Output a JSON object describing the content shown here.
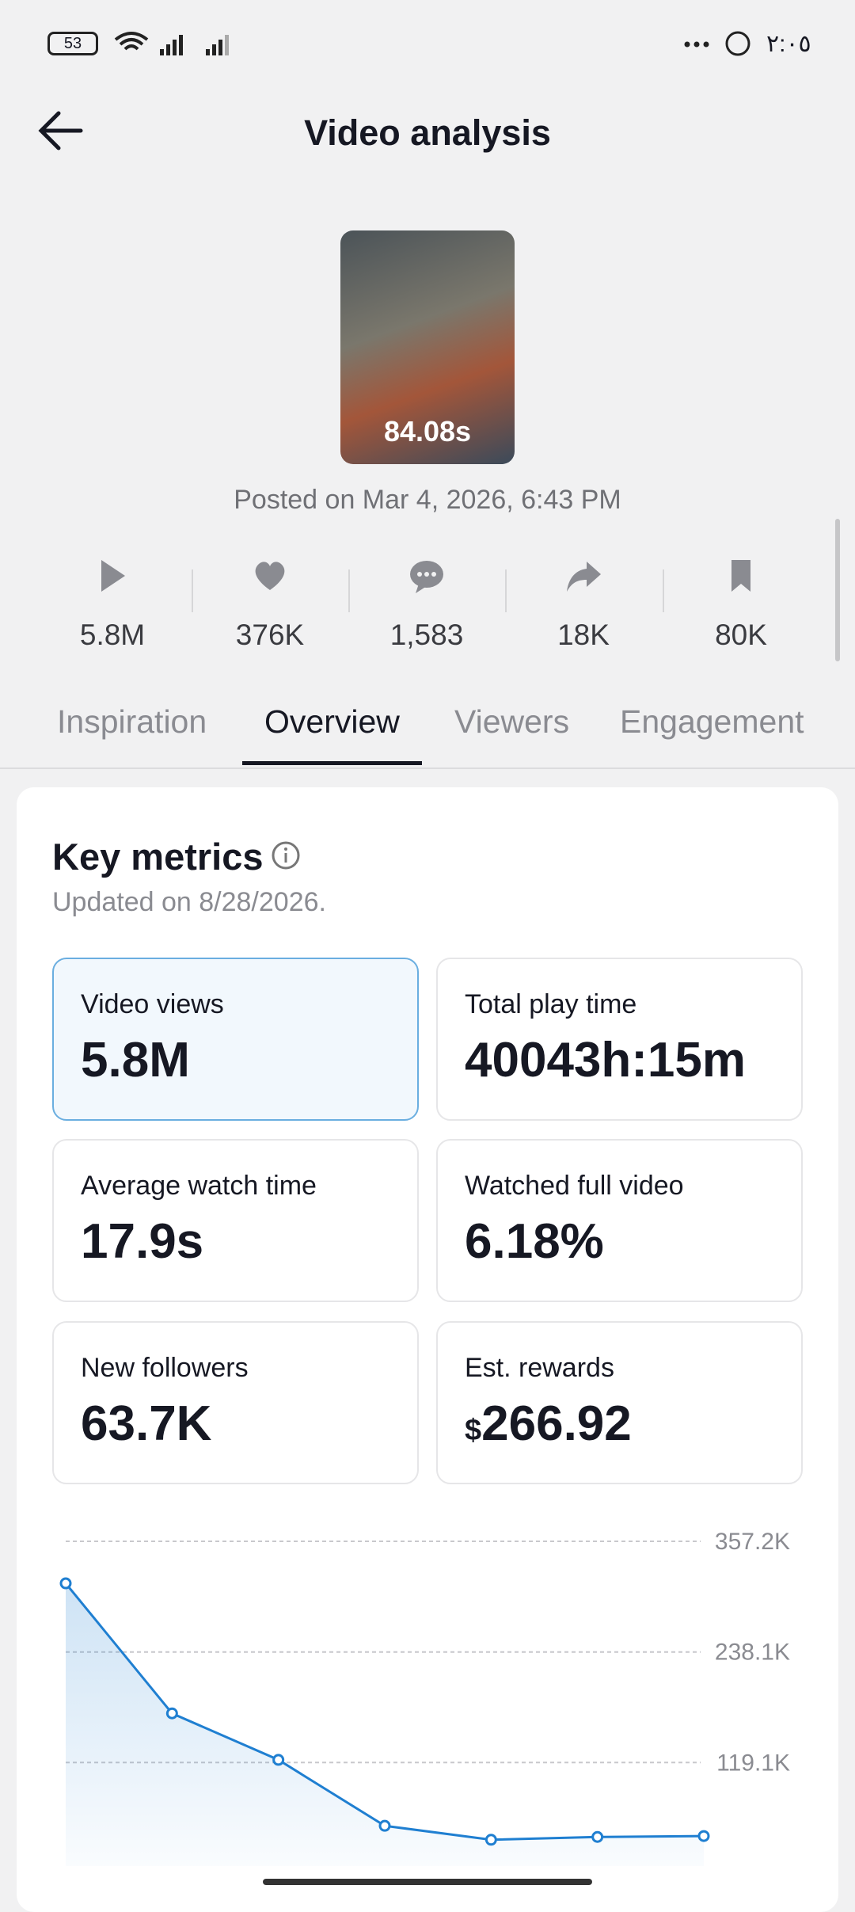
{
  "status_bar": {
    "battery": "53",
    "time": "٢:٠٥"
  },
  "header": {
    "title": "Video analysis"
  },
  "video": {
    "duration": "84.08s",
    "posted": "Posted on Mar 4, 2026, 6:43 PM"
  },
  "stats": [
    "5.8M",
    "376K",
    "1,583",
    "18K",
    "80K"
  ],
  "tabs": [
    "Inspiration",
    "Overview",
    "Viewers",
    "Engagement"
  ],
  "active_tab": 1,
  "key_metrics": {
    "title": "Key metrics",
    "updated": "Updated on 8/28/2026.",
    "metrics": [
      {
        "label": "Video views",
        "value": "5.8M",
        "selected": true
      },
      {
        "label": "Total play time",
        "value": "40043h:15m"
      },
      {
        "label": "Average watch time",
        "value": "17.9s"
      },
      {
        "label": "Watched full video",
        "value": "6.18%"
      },
      {
        "label": "New followers",
        "value": "63.7K"
      },
      {
        "label": "Est. rewards",
        "currency": "$",
        "value": "266.92"
      }
    ]
  },
  "chart_data": {
    "type": "line",
    "categories": [
      null,
      null,
      null,
      null,
      null,
      null,
      null
    ],
    "values": [
      312000,
      172000,
      122000,
      51000,
      36000,
      39000,
      40000
    ],
    "color": "#1f7fd1",
    "ylim": [
      0,
      357200
    ],
    "yticks": [
      {
        "value": 119100,
        "label": "119.1K"
      },
      {
        "value": 238100,
        "label": "238.1K"
      },
      {
        "value": 357200,
        "label": "357.2K"
      }
    ],
    "grid": true
  }
}
